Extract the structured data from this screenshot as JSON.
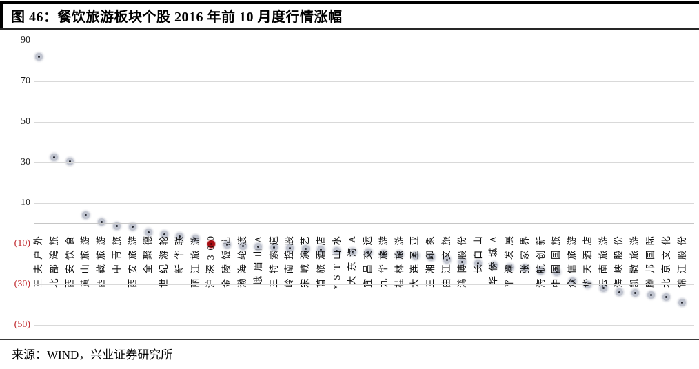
{
  "header": {
    "title": "图 46：餐饮旅游板块个股 2016 年前 10 月度行情涨幅"
  },
  "footer": {
    "source": "来源：WIND，兴业证券研究所"
  },
  "colors": {
    "highlight_red": "#a80d12",
    "negative_tick_red": "#c0282d",
    "gridline_gray": "#d9d9d9",
    "point_gray": "#a8adbc",
    "point_core": "#23262e",
    "rule_black": "#000000"
  },
  "chart_data": {
    "type": "scatter",
    "title": "餐饮旅游板块个股2016年前10月度行情涨幅",
    "xlabel": "",
    "ylabel": "",
    "ylim": [
      -50,
      90
    ],
    "grid": true,
    "legend": "none",
    "unit": "%",
    "highlight_series": "沪深300",
    "yticks": [
      {
        "value": 90,
        "label": "90"
      },
      {
        "value": 70,
        "label": "70"
      },
      {
        "value": 50,
        "label": "50"
      },
      {
        "value": 30,
        "label": "30"
      },
      {
        "value": 10,
        "label": "10"
      },
      {
        "value": -10,
        "label": "(10)"
      },
      {
        "value": -30,
        "label": "(30)"
      },
      {
        "value": -50,
        "label": "(50)"
      }
    ],
    "points": [
      {
        "label": "三夫户外",
        "value": 82
      },
      {
        "label": "北部湾旅",
        "value": 32.5
      },
      {
        "label": "西安饮食",
        "value": 30.5
      },
      {
        "label": "黄山旅游",
        "value": 4
      },
      {
        "label": "西藏旅游",
        "value": 0.5
      },
      {
        "label": "中青旅",
        "value": -1.5
      },
      {
        "label": "西安旅游",
        "value": -2
      },
      {
        "label": "全聚德",
        "value": -4.5
      },
      {
        "label": "世纪游轮",
        "value": -5.5
      },
      {
        "label": "新华联",
        "value": -6.5
      },
      {
        "label": "丽江旅游",
        "value": -7.5
      },
      {
        "label": "沪深300",
        "value": -10.5,
        "highlight": true
      },
      {
        "label": "金陵饭店",
        "value": -10.8
      },
      {
        "label": "渤海轮渡",
        "value": -11.2
      },
      {
        "label": "峨眉山A",
        "value": -11.6
      },
      {
        "label": "三特索道",
        "value": -12
      },
      {
        "label": "岭南控股",
        "value": -12.4
      },
      {
        "label": "宋城演艺",
        "value": -12.8
      },
      {
        "label": "首旅酒店",
        "value": -13.2
      },
      {
        "label": "*ST山水",
        "value": -13.6
      },
      {
        "label": "大东海A",
        "value": -14
      },
      {
        "label": "宜昌交运",
        "value": -14.5
      },
      {
        "label": "九华旅游",
        "value": -15
      },
      {
        "label": "桂林旅游",
        "value": -15.5
      },
      {
        "label": "大连圣亚",
        "value": -16.2
      },
      {
        "label": "三湘印象",
        "value": -16.8
      },
      {
        "label": "曲江文旅",
        "value": -18
      },
      {
        "label": "鸿博股份",
        "value": -19
      },
      {
        "label": "长白山",
        "value": -19.8
      },
      {
        "label": "华侨城A",
        "value": -21
      },
      {
        "label": "平潭发展",
        "value": -21.8
      },
      {
        "label": "张家界",
        "value": -22.3
      },
      {
        "label": "海航创新",
        "value": -23.7
      },
      {
        "label": "中国国旅",
        "value": -24.2
      },
      {
        "label": "众信旅游",
        "value": -28.7
      },
      {
        "label": "华天酒店",
        "value": -30.4
      },
      {
        "label": "云南旅游",
        "value": -32.2
      },
      {
        "label": "海峡股份",
        "value": -34
      },
      {
        "label": "凯撒旅游",
        "value": -34.5
      },
      {
        "label": "腾邦国际",
        "value": -35.5
      },
      {
        "label": "北京文化",
        "value": -36.5
      },
      {
        "label": "锦江股份",
        "value": -39.2
      }
    ]
  }
}
